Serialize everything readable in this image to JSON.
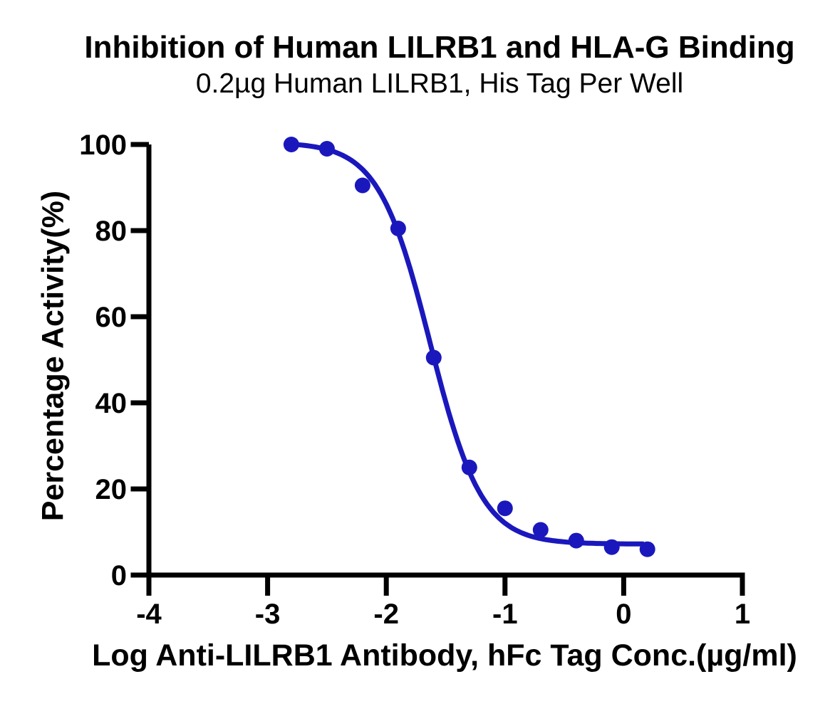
{
  "chart_data": {
    "type": "scatter",
    "title": "Inhibition of Human LILRB1 and HLA-G Binding",
    "subtitle": "0.2µg Human LILRB1, His Tag Per Well",
    "xlabel": "Log Anti-LILRB1 Antibody, hFc Tag Conc.(µg/ml)",
    "ylabel": "Percentage Activity(%)",
    "xlim": [
      -4,
      1
    ],
    "ylim": [
      0,
      100
    ],
    "x_ticks": [
      -4,
      -3,
      -2,
      -1,
      0,
      1
    ],
    "y_ticks": [
      0,
      20,
      40,
      60,
      80,
      100
    ],
    "grid": false,
    "legend_position": "none",
    "series": [
      {
        "name": "Anti-LILRB1 Antibody, hFc Tag",
        "marker": "circle",
        "color": "#1A18BC",
        "points": [
          {
            "x": -2.8,
            "y": 100
          },
          {
            "x": -2.5,
            "y": 99
          },
          {
            "x": -2.2,
            "y": 90.5
          },
          {
            "x": -1.9,
            "y": 80.5
          },
          {
            "x": -1.6,
            "y": 50.5
          },
          {
            "x": -1.3,
            "y": 25
          },
          {
            "x": -1.0,
            "y": 15.5
          },
          {
            "x": -0.7,
            "y": 10.5
          },
          {
            "x": -0.4,
            "y": 8
          },
          {
            "x": -0.1,
            "y": 6.5
          },
          {
            "x": 0.2,
            "y": 6
          }
        ],
        "fit_curve": {
          "model": "four-parameter-logistic",
          "top": 100.5,
          "bottom": 7.2,
          "logEC50": -1.63,
          "hill_slope": 2.0,
          "x_start": -2.82,
          "x_end": 0.17
        }
      }
    ]
  },
  "colors": {
    "background": "#FFFFFF",
    "axis": "#000000",
    "text": "#000000",
    "curve_blue": "#1A18BC"
  }
}
